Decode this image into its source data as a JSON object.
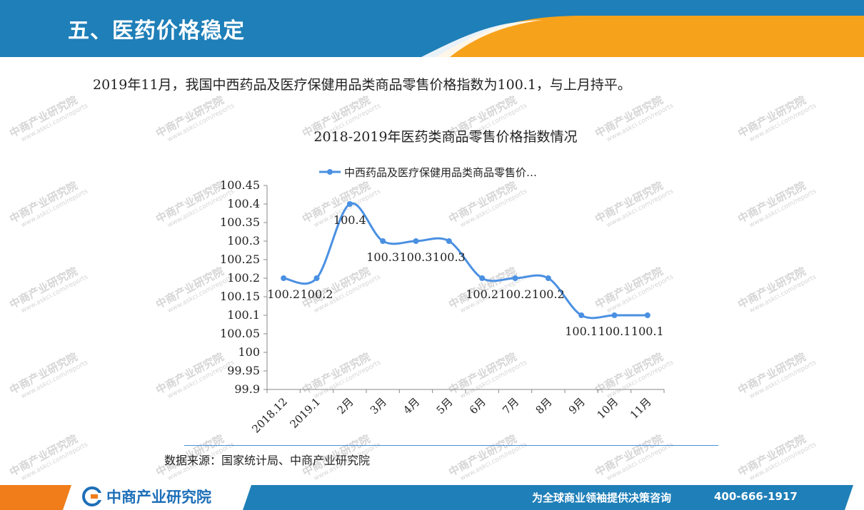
{
  "header": {
    "title": "五、医药价格稳定"
  },
  "intro": {
    "text": "2019年11月，我国中西药品及医疗保健用品类商品零售价格指数为100.1，与上月持平。"
  },
  "watermark": {
    "text": "中商产业研究院",
    "sub": "www.askci.com/reports"
  },
  "chart_data": {
    "type": "line",
    "title": "2018-2019年医药类商品零售价格指数情况",
    "legend_position": "top",
    "categories": [
      "2018.12",
      "2019.1",
      "2月",
      "3月",
      "4月",
      "5月",
      "6月",
      "7月",
      "8月",
      "9月",
      "10月",
      "11月"
    ],
    "series": [
      {
        "name": "中西药品及医疗保健用品类商品零售价…",
        "values": [
          100.2,
          100.2,
          100.4,
          100.3,
          100.3,
          100.3,
          100.2,
          100.2,
          100.2,
          100.1,
          100.1,
          100.1
        ],
        "color": "#4a90e2"
      }
    ],
    "data_labels": [
      "100.2",
      "100.2",
      "100.4",
      "100.3",
      "100.3",
      "100.3",
      "100.2",
      "100.2",
      "100.2",
      "100.1",
      "100.1",
      "100.1"
    ],
    "yticks": [
      "99.9",
      "99.95",
      "100",
      "100.05",
      "100.1",
      "100.15",
      "100.2",
      "100.25",
      "100.3",
      "100.35",
      "100.4",
      "100.45"
    ],
    "ylim": [
      99.9,
      100.45
    ],
    "grid": false,
    "xlabel": "",
    "ylabel": ""
  },
  "source": {
    "text": "数据来源：国家统计局、中商产业研究院"
  },
  "footer": {
    "brand": "中商产业研究院",
    "slogan": "为全球商业领袖提供决策咨询",
    "phone": "400-666-1917",
    "brand_color": "#1e6fb8",
    "accent_color": "#f7a21b"
  }
}
